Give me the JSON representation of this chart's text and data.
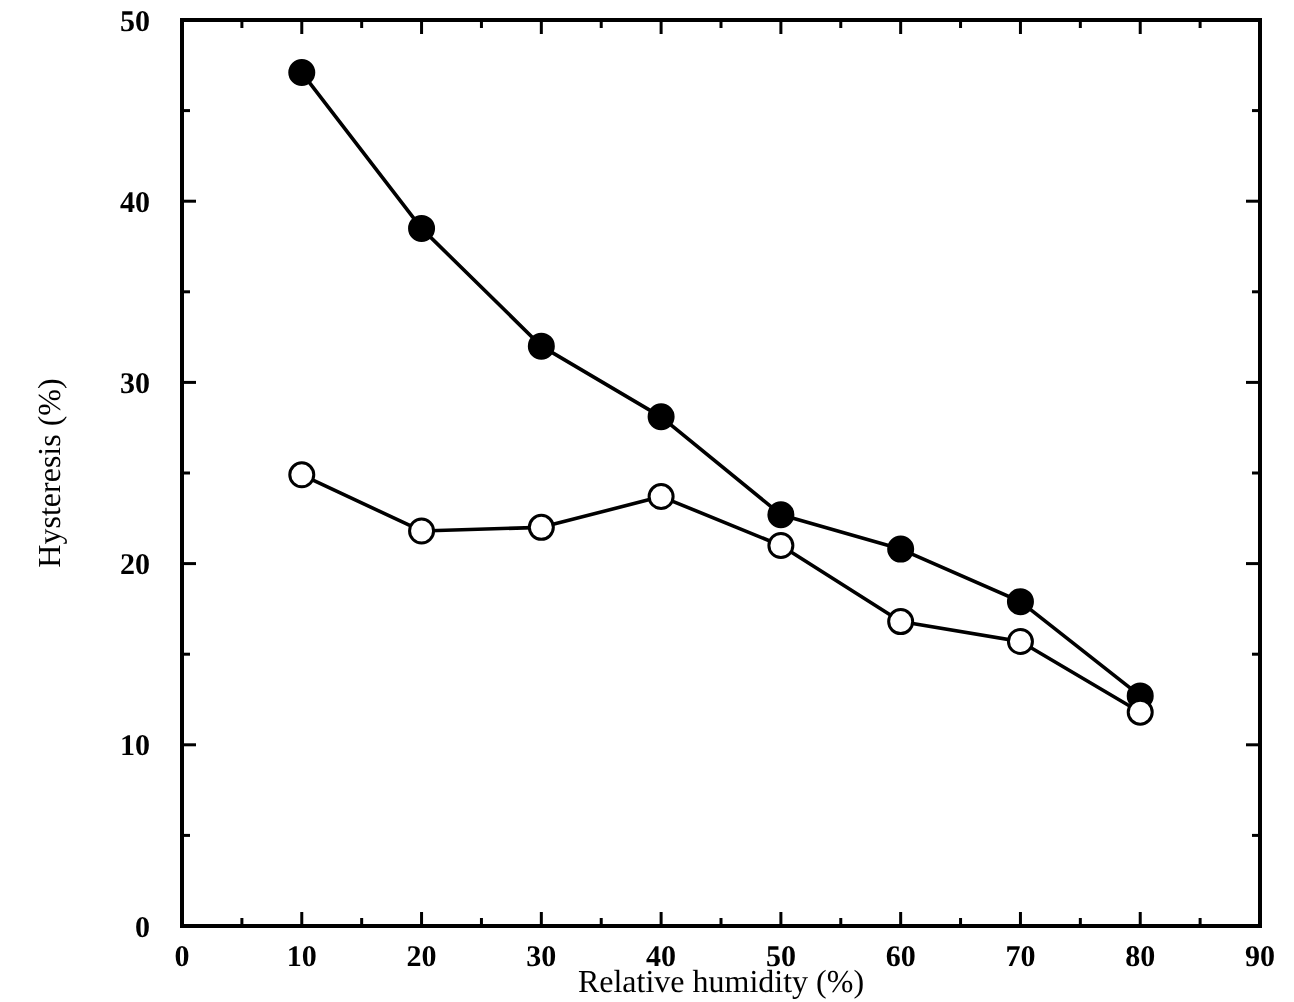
{
  "chart_data": {
    "type": "line",
    "xlabel": "Relative humidity (%)",
    "ylabel": "Hysteresis (%)",
    "x": [
      10,
      20,
      30,
      40,
      50,
      60,
      70,
      80
    ],
    "series": [
      {
        "color": "#000000",
        "marker": "circle",
        "values": [
          47.1,
          38.5,
          32.0,
          28.1,
          22.7,
          20.8,
          17.9,
          12.7
        ]
      },
      {
        "color": "#000000",
        "marker": "circle",
        "values": [
          24.9,
          21.8,
          22.0,
          23.7,
          21.0,
          16.8,
          15.7,
          11.8
        ]
      }
    ],
    "xlim": [
      0,
      90
    ],
    "xticks": [
      0,
      10,
      20,
      30,
      40,
      50,
      60,
      70,
      80,
      90
    ],
    "ylim": [
      0,
      50
    ],
    "yticks": [
      0,
      10,
      20,
      30,
      40,
      50
    ],
    "grid": false,
    "line_style": "solid"
  }
}
